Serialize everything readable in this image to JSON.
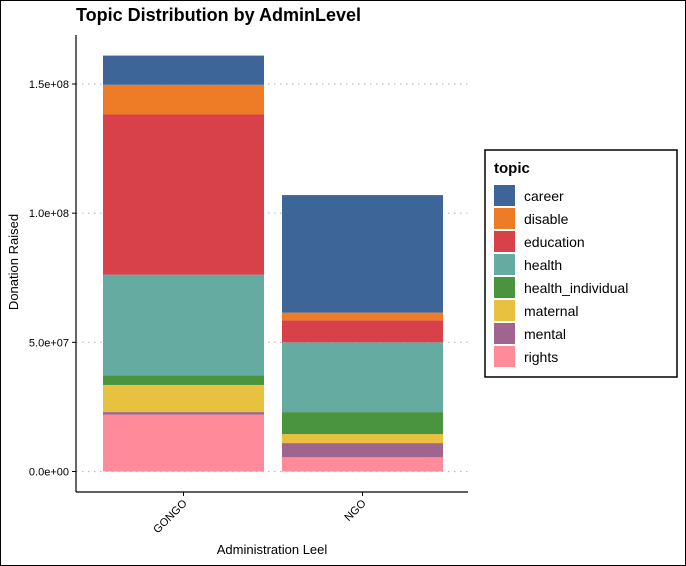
{
  "chart_data": {
    "type": "bar",
    "stacked": true,
    "title": "Topic Distribution by AdminLevel",
    "xlabel": "Administration Leel",
    "ylabel": "Donation Raised",
    "categories": [
      "GONGO",
      "NGO"
    ],
    "y_ticks": [
      {
        "value": 0,
        "label": "0.0e+00"
      },
      {
        "value": 50000000,
        "label": "5.0e+07"
      },
      {
        "value": 100000000,
        "label": "1.0e+08"
      },
      {
        "value": 150000000,
        "label": "1.5e+08"
      }
    ],
    "ylim": [
      0,
      168000000
    ],
    "grid": "horizontal-dotted",
    "legend": {
      "title": "topic",
      "placement": "right"
    },
    "series": [
      {
        "name": "rights",
        "color": "#FF8A9A",
        "values": [
          22000000,
          5500000
        ]
      },
      {
        "name": "mental",
        "color": "#A0658F",
        "values": [
          1000000,
          5500000
        ]
      },
      {
        "name": "maternal",
        "color": "#E8C140",
        "values": [
          10500000,
          3500000
        ]
      },
      {
        "name": "health_individual",
        "color": "#4A943F",
        "values": [
          3700000,
          8500000
        ]
      },
      {
        "name": "health",
        "color": "#66ABA2",
        "values": [
          39000000,
          27000000
        ]
      },
      {
        "name": "education",
        "color": "#D9414A",
        "values": [
          62000000,
          8500000
        ]
      },
      {
        "name": "disable",
        "color": "#EE7C26",
        "values": [
          11500000,
          3000000
        ]
      },
      {
        "name": "career",
        "color": "#3E6598",
        "values": [
          11300000,
          45500000
        ]
      }
    ],
    "legend_order": [
      "career",
      "disable",
      "education",
      "health",
      "health_individual",
      "maternal",
      "mental",
      "rights"
    ]
  }
}
